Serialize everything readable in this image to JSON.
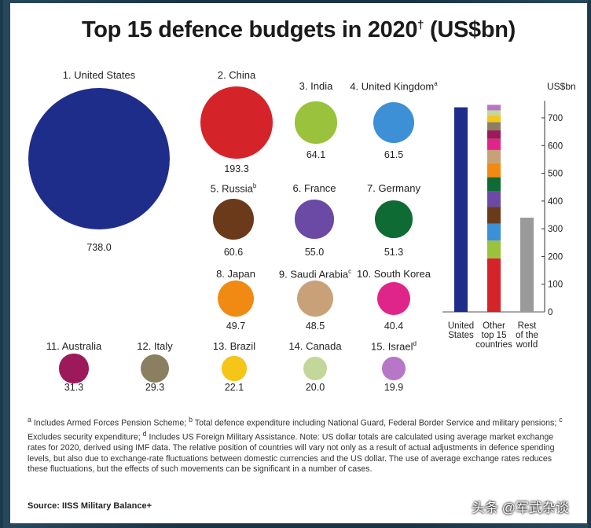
{
  "title": "Top 15 defence budgets in 2020",
  "title_mark": "†",
  "title_unit": " (US$bn)",
  "chart_data": {
    "type": "bubble",
    "title": "Top 15 defence budgets in 2020† (US$bn)",
    "unit": "US$bn",
    "countries": [
      {
        "rank": "1.",
        "name": "United States",
        "value": 738.0,
        "display": "738.0",
        "color": "#1f2d8a",
        "note": ""
      },
      {
        "rank": "2.",
        "name": "China",
        "value": 193.3,
        "display": "193.3",
        "color": "#d5232a",
        "note": ""
      },
      {
        "rank": "3.",
        "name": "India",
        "value": 64.1,
        "display": "64.1",
        "color": "#9ac23c",
        "note": ""
      },
      {
        "rank": "4.",
        "name": "United Kingdom",
        "value": 61.5,
        "display": "61.5",
        "color": "#3d8fd6",
        "note": "a"
      },
      {
        "rank": "5.",
        "name": "Russia",
        "value": 60.6,
        "display": "60.6",
        "color": "#6b3a1a",
        "note": "b"
      },
      {
        "rank": "6.",
        "name": "France",
        "value": 55.0,
        "display": "55.0",
        "color": "#6a4aa5",
        "note": ""
      },
      {
        "rank": "7.",
        "name": "Germany",
        "value": 51.3,
        "display": "51.3",
        "color": "#0f6b34",
        "note": ""
      },
      {
        "rank": "8.",
        "name": "Japan",
        "value": 49.7,
        "display": "49.7",
        "color": "#f08a12",
        "note": ""
      },
      {
        "rank": "9.",
        "name": "Saudi Arabia",
        "value": 48.5,
        "display": "48.5",
        "color": "#c9a178",
        "note": "c"
      },
      {
        "rank": "10.",
        "name": "South Korea",
        "value": 40.4,
        "display": "40.4",
        "color": "#e0258a",
        "note": ""
      },
      {
        "rank": "11.",
        "name": "Australia",
        "value": 31.3,
        "display": "31.3",
        "color": "#9c1a5a",
        "note": ""
      },
      {
        "rank": "12.",
        "name": "Italy",
        "value": 29.3,
        "display": "29.3",
        "color": "#8a8061",
        "note": ""
      },
      {
        "rank": "13.",
        "name": "Brazil",
        "value": 22.1,
        "display": "22.1",
        "color": "#f5c518",
        "note": ""
      },
      {
        "rank": "14.",
        "name": "Canada",
        "value": 20.0,
        "display": "20.0",
        "color": "#c4d79a",
        "note": ""
      },
      {
        "rank": "15.",
        "name": "Israel",
        "value": 19.9,
        "display": "19.9",
        "color": "#b777c6",
        "note": "d"
      }
    ],
    "bar_chart": {
      "type": "stacked-bar",
      "ylabel": "US$bn",
      "ylim": [
        0,
        750
      ],
      "yticks": [
        0,
        100,
        200,
        300,
        400,
        500,
        600,
        700
      ],
      "bars": [
        {
          "label": "United States",
          "value": 738.0,
          "color": "#1f2d8a"
        },
        {
          "label": "Other top 15 countries",
          "stacked": true,
          "value": 747.4,
          "color": "#d5232a"
        },
        {
          "label": "Rest of the world",
          "value": 340,
          "color": "#9a9a9a"
        }
      ]
    }
  },
  "footnote": {
    "a_mark": "a",
    "a_text": " Includes Armed Forces Pension Scheme; ",
    "b_mark": "b",
    "b_text": " Total defence expenditure including National Guard, Federal Border Service and military pensions; ",
    "c_mark": "c",
    "c_text": " Excludes security expenditure; ",
    "d_mark": "d",
    "d_text": " Includes US Foreign Military Assistance. Note: US dollar totals are calculated using average market exchange rates for 2020, derived using IMF data. The relative position of countries will vary not only as a result of actual adjustments in defence spending levels, but also due to exchange-rate fluctuations between domestic currencies and the US dollar. The use of average exchange rates reduces these fluctuations, but the effects of such movements can be significant in a number of cases."
  },
  "source": "Source: IISS Military Balance+",
  "watermark": "头条 @军武杂谈"
}
